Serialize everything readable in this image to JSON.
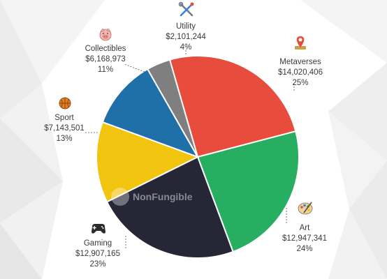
{
  "watermark": "NonFungible",
  "chart_data": {
    "type": "pie",
    "start_angle_deg": -16,
    "slices": [
      {
        "name": "Metaverses",
        "value": 14020406,
        "value_label": "$14,020,406",
        "pct_label": "25%",
        "color": "#e74c3c",
        "icon": "map-pin-icon"
      },
      {
        "name": "Art",
        "value": 12947341,
        "value_label": "$12,947,341",
        "pct_label": "24%",
        "color": "#27ae60",
        "icon": "palette-icon"
      },
      {
        "name": "Gaming",
        "value": 12907165,
        "value_label": "$12,907,165",
        "pct_label": "23%",
        "color": "#262637",
        "icon": "gamepad-icon"
      },
      {
        "name": "Sport",
        "value": 7143501,
        "value_label": "$7,143,501",
        "pct_label": "13%",
        "color": "#f1c40f",
        "icon": "basketball-icon"
      },
      {
        "name": "Collectibles",
        "value": 6168973,
        "value_label": "$6,168,973",
        "pct_label": "11%",
        "color": "#1f6fa8",
        "icon": "pig-icon"
      },
      {
        "name": "Utility",
        "value": 2101244,
        "value_label": "$2,101,244",
        "pct_label": "4%",
        "color": "#7f7f7f",
        "icon": "tools-icon"
      }
    ]
  }
}
